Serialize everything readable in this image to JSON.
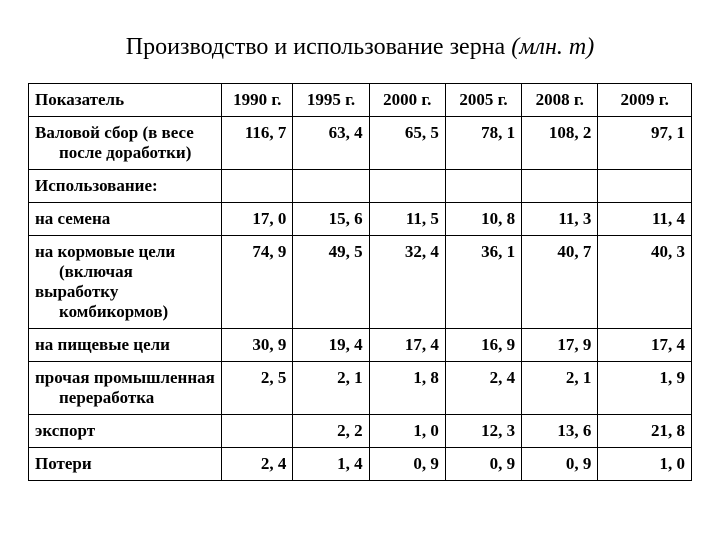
{
  "title_main": "Производство и использование зерна ",
  "title_italic": "(млн. т)",
  "headers": {
    "indicator": "Показатель",
    "y1990": "1990 г.",
    "y1995": "1995 г.",
    "y2000": "2000 г.",
    "y2005": "2005 г.",
    "y2008": "2008 г.",
    "y2009": "2009 г."
  },
  "rows": {
    "gross": {
      "label_line1": "Валовой сбор (в весе",
      "label_line2": "после доработки)",
      "v1990": "116, 7",
      "v1995": "63, 4",
      "v2000": "65, 5",
      "v2005": "78, 1",
      "v2008": "108, 2",
      "v2009": "97, 1"
    },
    "use_header": {
      "label": "Использование:"
    },
    "seeds": {
      "label": "на семена",
      "v1990": "17, 0",
      "v1995": "15, 6",
      "v2000": "11, 5",
      "v2005": "10, 8",
      "v2008": "11, 3",
      "v2009": "11, 4"
    },
    "feed": {
      "label_line1": "на кормовые цели",
      "label_line2": "(включая выработку",
      "label_line3": "комбикормов)",
      "v1990": "74, 9",
      "v1995": "49, 5",
      "v2000": "32, 4",
      "v2005": "36, 1",
      "v2008": "40, 7",
      "v2009": "40, 3"
    },
    "food": {
      "label": "на пищевые цели",
      "v1990": "30, 9",
      "v1995": "19, 4",
      "v2000": "17, 4",
      "v2005": "16, 9",
      "v2008": "17, 9",
      "v2009": "17, 4"
    },
    "industrial": {
      "label_line1": "прочая промышленная",
      "label_line2": "переработка",
      "v1990": "2, 5",
      "v1995": "2, 1",
      "v2000": "1, 8",
      "v2005": "2, 4",
      "v2008": "2, 1",
      "v2009": "1, 9"
    },
    "export": {
      "label": "экспорт",
      "v1990": "",
      "v1995": "2, 2",
      "v2000": "1, 0",
      "v2005": "12, 3",
      "v2008": "13, 6",
      "v2009": "21, 8"
    },
    "losses": {
      "label": "Потери",
      "v1990": "2, 4",
      "v1995": "1, 4",
      "v2000": "0, 9",
      "v2005": "0, 9",
      "v2008": "0, 9",
      "v2009": "1, 0"
    }
  }
}
